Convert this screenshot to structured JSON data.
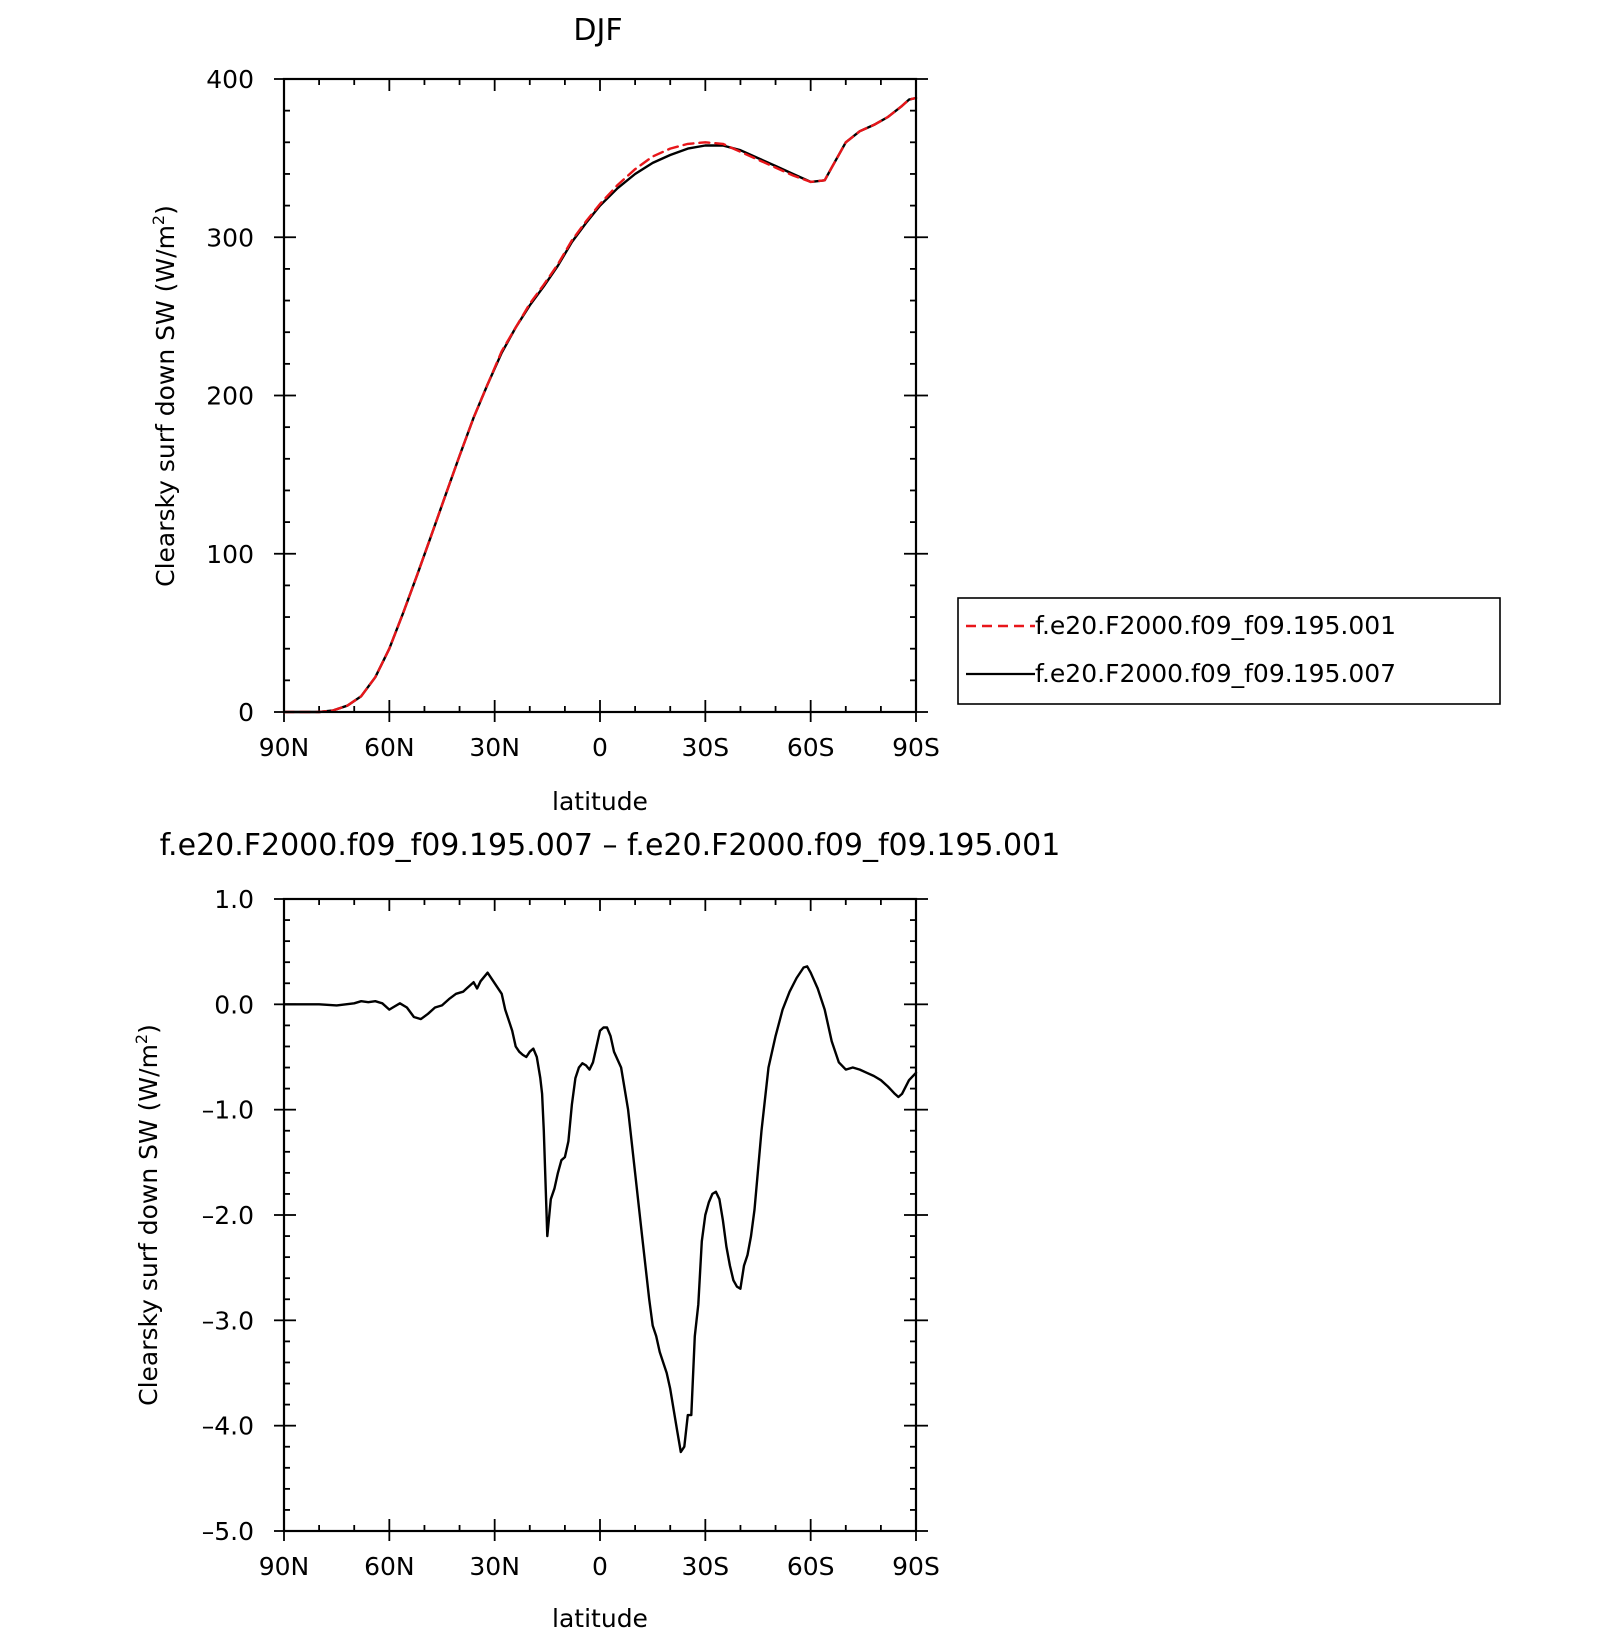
{
  "chart_data": [
    {
      "type": "line",
      "title": "DJF",
      "xlabel": "latitude",
      "ylabel": "Clearsky surf down SW (W/m²)",
      "ylabel_main": "Clearsky surf down SW (W/m",
      "ylabel_sup": "2",
      "ylabel_end": ")",
      "xlim": [
        90,
        -90
      ],
      "ylim": [
        0,
        400
      ],
      "x_ticks": [
        90,
        60,
        30,
        0,
        -30,
        -60,
        -90
      ],
      "x_tick_labels": [
        "90N",
        "60N",
        "30N",
        "0",
        "30S",
        "60S",
        "90S"
      ],
      "y_ticks": [
        0,
        100,
        200,
        300,
        400
      ],
      "y_tick_labels": [
        "0",
        "100",
        "200",
        "300",
        "400"
      ],
      "grid": false,
      "legend": "right, outside",
      "series": [
        {
          "name": "f.e20.F2000.f09_f09.195.001",
          "color": "#e8161a",
          "style": "dashed",
          "x": [
            90,
            80,
            76,
            72,
            68,
            64,
            60,
            56,
            52,
            48,
            44,
            40,
            36,
            32,
            28,
            24,
            20,
            16,
            12,
            8,
            4,
            0,
            -5,
            -10,
            -15,
            -20,
            -25,
            -30,
            -35,
            -40,
            -45,
            -50,
            -55,
            -60,
            -64,
            -66,
            -70,
            -74,
            -78,
            -82,
            -86,
            -88,
            -90
          ],
          "y": [
            0,
            0,
            1,
            4,
            10,
            22,
            40,
            63,
            87,
            112,
            137,
            162,
            186,
            207,
            228,
            243,
            258,
            270,
            283,
            298,
            310,
            321,
            333,
            343,
            351,
            356,
            359,
            360,
            359,
            354,
            349,
            344,
            339,
            335,
            336,
            344,
            360,
            367,
            371,
            376,
            383,
            387,
            388
          ]
        },
        {
          "name": "f.e20.F2000.f09_f09.195.007",
          "color": "#000000",
          "style": "solid",
          "x": [
            90,
            80,
            76,
            72,
            68,
            64,
            60,
            56,
            52,
            48,
            44,
            40,
            36,
            32,
            28,
            24,
            20,
            16,
            12,
            8,
            4,
            0,
            -5,
            -10,
            -15,
            -20,
            -25,
            -30,
            -35,
            -40,
            -45,
            -50,
            -55,
            -60,
            -64,
            -66,
            -70,
            -74,
            -78,
            -82,
            -86,
            -88,
            -90
          ],
          "y": [
            0,
            0,
            1,
            4,
            10,
            22,
            40,
            63,
            87,
            112,
            137,
            162,
            186,
            207,
            227,
            243,
            257,
            269,
            282,
            297,
            309,
            320,
            331,
            340,
            347,
            352,
            356,
            358,
            358,
            355,
            350,
            345,
            340,
            335,
            336,
            344,
            360,
            367,
            371,
            376,
            383,
            387,
            388
          ]
        }
      ]
    },
    {
      "type": "line",
      "title": "f.e20.F2000.f09_f09.195.007 – f.e20.F2000.f09_f09.195.001",
      "xlabel": "latitude",
      "ylabel": "Clearsky surf down SW (W/m²)",
      "ylabel_main": "Clearsky surf down SW (W/m",
      "ylabel_sup": "2",
      "ylabel_end": ")",
      "xlim": [
        90,
        -90
      ],
      "ylim": [
        -5.0,
        1.0
      ],
      "x_ticks": [
        90,
        60,
        30,
        0,
        -30,
        -60,
        -90
      ],
      "x_tick_labels": [
        "90N",
        "60N",
        "30N",
        "0",
        "30S",
        "60S",
        "90S"
      ],
      "y_ticks": [
        1.0,
        0.0,
        -1.0,
        -2.0,
        -3.0,
        -4.0,
        -5.0
      ],
      "y_tick_labels": [
        "1.0",
        "0.0",
        "–1.0",
        "–2.0",
        "–3.0",
        "–4.0",
        "–5.0"
      ],
      "grid": false,
      "series": [
        {
          "color": "#000000",
          "style": "solid",
          "x": [
            90,
            80,
            75,
            70,
            68,
            66,
            64,
            62,
            60,
            59,
            57,
            55,
            53,
            51,
            49,
            47,
            45,
            43,
            41,
            39,
            38,
            37,
            36,
            35,
            34,
            32,
            30,
            28,
            27,
            26,
            25,
            24,
            23,
            22,
            21,
            20,
            19,
            18,
            17,
            16.5,
            16,
            15,
            14,
            13,
            12,
            11,
            10,
            9,
            8,
            7,
            6,
            5,
            4,
            3,
            2,
            1,
            0,
            -1,
            -2,
            -3,
            -4,
            -6,
            -8,
            -10,
            -12,
            -14,
            -15,
            -16,
            -17,
            -18,
            -19,
            -20,
            -21,
            -22,
            -23,
            -24,
            -25,
            -26,
            -27,
            -28,
            -29,
            -30,
            -31,
            -32,
            -33,
            -34,
            -35,
            -36,
            -37,
            -38,
            -39,
            -40,
            -41,
            -42,
            -43,
            -44,
            -46,
            -48,
            -50,
            -52,
            -54,
            -56,
            -58,
            -59,
            -60,
            -62,
            -64,
            -66,
            -68,
            -70,
            -72,
            -74,
            -76,
            -78,
            -80,
            -82,
            -84,
            -85,
            -86,
            -88,
            -90
          ],
          "y": [
            0,
            0,
            -0.01,
            0.01,
            0.03,
            0.02,
            0.03,
            0.01,
            -0.05,
            -0.03,
            0.01,
            -0.03,
            -0.12,
            -0.14,
            -0.09,
            -0.03,
            -0.01,
            0.05,
            0.1,
            0.12,
            0.15,
            0.18,
            0.21,
            0.15,
            0.22,
            0.3,
            0.2,
            0.1,
            -0.05,
            -0.15,
            -0.25,
            -0.4,
            -0.45,
            -0.48,
            -0.5,
            -0.45,
            -0.42,
            -0.5,
            -0.7,
            -0.85,
            -1.2,
            -2.2,
            -1.85,
            -1.75,
            -1.6,
            -1.48,
            -1.45,
            -1.3,
            -0.95,
            -0.7,
            -0.6,
            -0.56,
            -0.58,
            -0.62,
            -0.55,
            -0.4,
            -0.25,
            -0.22,
            -0.22,
            -0.3,
            -0.45,
            -0.6,
            -1.0,
            -1.6,
            -2.2,
            -2.8,
            -3.05,
            -3.15,
            -3.3,
            -3.4,
            -3.5,
            -3.65,
            -3.85,
            -4.05,
            -4.25,
            -4.2,
            -3.9,
            -3.9,
            -3.15,
            -2.85,
            -2.25,
            -2.0,
            -1.88,
            -1.8,
            -1.78,
            -1.85,
            -2.05,
            -2.3,
            -2.48,
            -2.62,
            -2.68,
            -2.7,
            -2.48,
            -2.38,
            -2.2,
            -1.95,
            -1.2,
            -0.6,
            -0.3,
            -0.05,
            0.12,
            0.25,
            0.35,
            0.36,
            0.3,
            0.15,
            -0.05,
            -0.35,
            -0.55,
            -0.62,
            -0.6,
            -0.62,
            -0.65,
            -0.68,
            -0.72,
            -0.78,
            -0.85,
            -0.88,
            -0.85,
            -0.72,
            -0.65
          ]
        }
      ]
    }
  ]
}
